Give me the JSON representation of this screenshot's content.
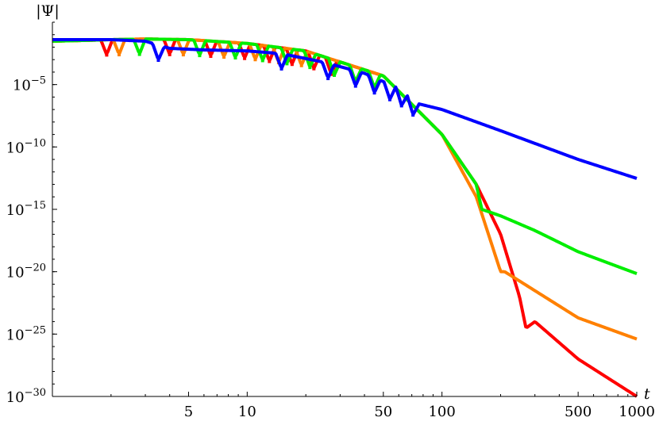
{
  "chart_data": {
    "type": "scatter",
    "scale": "log-log",
    "title": "",
    "xlabel": "t",
    "ylabel": "|Ψ|",
    "xlim": [
      1,
      1000
    ],
    "ylim": [
      1e-30,
      1.0
    ],
    "x_ticks": [
      {
        "value": 5,
        "label": "5"
      },
      {
        "value": 10,
        "label": "10"
      },
      {
        "value": 50,
        "label": "50"
      },
      {
        "value": 100,
        "label": "100"
      },
      {
        "value": 500,
        "label": "500"
      },
      {
        "value": 1000,
        "label": "1000"
      }
    ],
    "y_ticks": [
      {
        "value": 1e-05,
        "base": "10",
        "exp": "−5"
      },
      {
        "value": 1e-10,
        "base": "10",
        "exp": "−10"
      },
      {
        "value": 1e-15,
        "base": "10",
        "exp": "−15"
      },
      {
        "value": 1e-20,
        "base": "10",
        "exp": "−20"
      },
      {
        "value": 1e-25,
        "base": "10",
        "exp": "−25"
      },
      {
        "value": 1e-30,
        "base": "10",
        "exp": "−30"
      }
    ],
    "series": [
      {
        "color": "#ff0000",
        "x": [
          1.0,
          1.5,
          2.0,
          3.0,
          5.0,
          10.0,
          20.0,
          50.0,
          100.0,
          150.0,
          200.0,
          250.0,
          270.0,
          300.0,
          500.0,
          1000.0
        ],
        "y": [
          0.03,
          0.035,
          0.04,
          0.045,
          0.04,
          0.02,
          0.005,
          5e-05,
          1e-09,
          1e-13,
          1e-17,
          1e-22,
          3e-25,
          1e-24,
          1e-27,
          1e-30
        ],
        "dips_x": [
          1.9,
          4.0,
          6.5,
          9.7,
          13.0,
          17.0,
          22.0,
          27.0
        ]
      },
      {
        "color": "#ff8000",
        "x": [
          1.0,
          1.5,
          2.0,
          3.0,
          5.0,
          10.0,
          20.0,
          50.0,
          100.0,
          150.0,
          200.0,
          210.0,
          300.0,
          500.0,
          1000.0
        ],
        "y": [
          0.03,
          0.035,
          0.04,
          0.045,
          0.04,
          0.02,
          0.005,
          5e-05,
          1e-09,
          1e-14,
          1e-20,
          1e-20,
          3e-22,
          2e-24,
          4e-26
        ],
        "dips_x": [
          2.2,
          4.7,
          7.6,
          11.0,
          14.5,
          19.0
        ]
      },
      {
        "color": "#00ee00",
        "x": [
          1.0,
          1.5,
          2.0,
          3.0,
          5.0,
          10.0,
          20.0,
          50.0,
          100.0,
          150.0,
          160.0,
          200.0,
          300.0,
          500.0,
          1000.0
        ],
        "y": [
          0.03,
          0.035,
          0.04,
          0.045,
          0.04,
          0.02,
          0.005,
          5e-05,
          1e-09,
          1e-13,
          1e-15,
          3e-16,
          2e-17,
          4e-19,
          7e-21
        ],
        "dips_x": [
          2.8,
          5.7,
          8.7,
          12.0,
          16.0,
          21.0,
          28.0,
          36.0,
          45.0
        ]
      },
      {
        "color": "#0000ff",
        "x": [
          1.0,
          2.0,
          3.0,
          4.0,
          6.0,
          10.0,
          15.0,
          25.0,
          40.0,
          60.0,
          75.0,
          100.0,
          200.0,
          500.0,
          1000.0
        ],
        "y": [
          0.04,
          0.04,
          0.03,
          0.008,
          0.006,
          0.005,
          0.003,
          0.0006,
          8e-05,
          5e-06,
          3e-07,
          1e-07,
          2e-09,
          1e-11,
          3e-13
        ],
        "dips_x": [
          3.5,
          15.0,
          26.0,
          36.0,
          45.0,
          54.0,
          62.0,
          71.0
        ]
      }
    ]
  }
}
